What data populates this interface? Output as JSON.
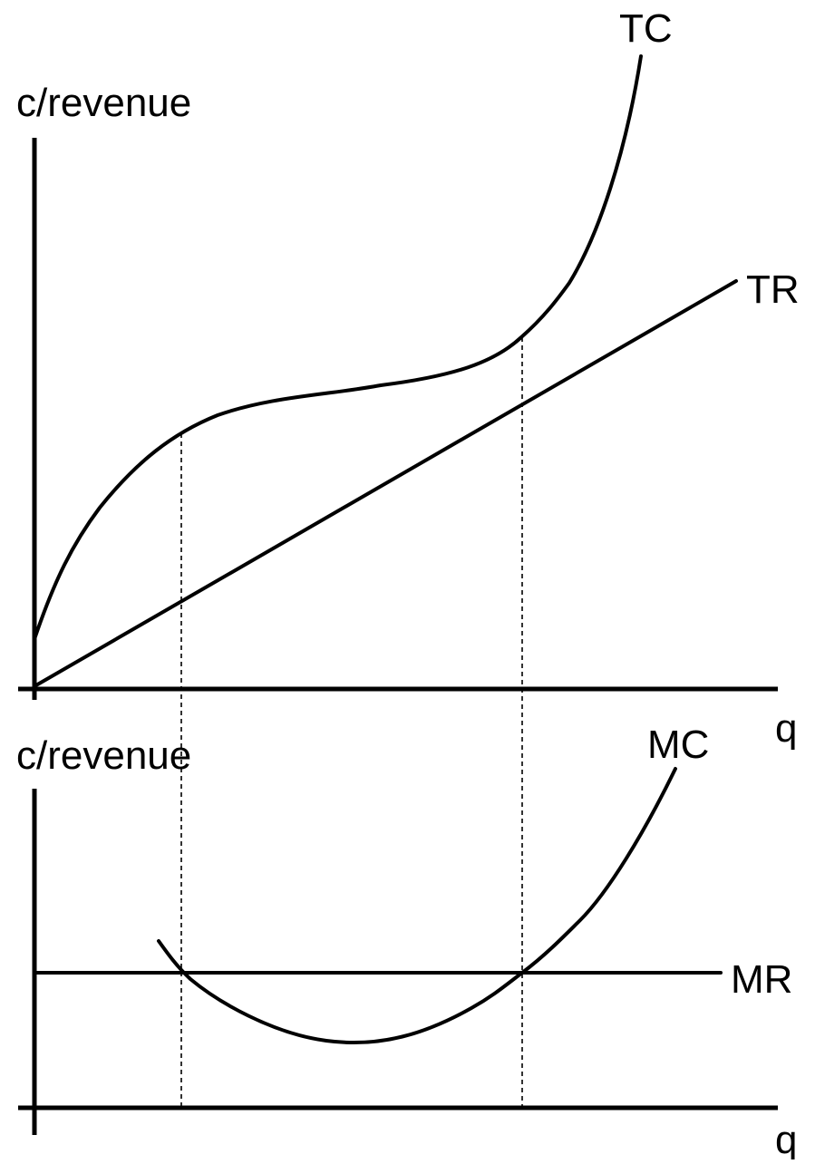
{
  "top_panel": {
    "y_axis_label": "c/revenue",
    "x_axis_label": "q",
    "curves": [
      {
        "label": "TC"
      },
      {
        "label": "TR"
      }
    ]
  },
  "bottom_panel": {
    "y_axis_label": "c/revenue",
    "x_axis_label": "q",
    "curves": [
      {
        "label": "MC"
      },
      {
        "label": "MR"
      }
    ]
  }
}
